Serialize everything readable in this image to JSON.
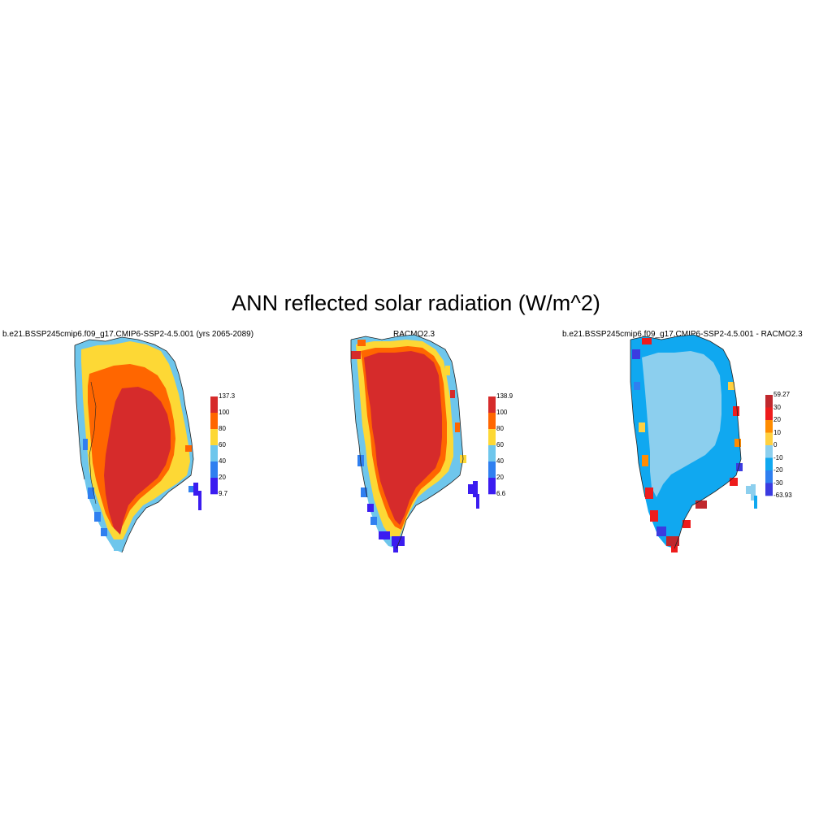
{
  "figure": {
    "title": "ANN reflected solar radiation (W/m^2)"
  },
  "panels": [
    {
      "title": "b.e21.BSSP245cmip6.f09_g17.CMIP6-SSP2-4.5.001 (yrs 2065-2089)",
      "colorbar": {
        "labels": [
          "137.3",
          "100",
          "80",
          "60",
          "40",
          "20",
          "9.7"
        ],
        "colors": [
          "#d62b2b",
          "#ff6600",
          "#fdd835",
          "#6ec6ec",
          "#2f7ff0",
          "#3b1cf0"
        ]
      }
    },
    {
      "title": "RACMO2.3",
      "colorbar": {
        "labels": [
          "138.9",
          "100",
          "80",
          "60",
          "40",
          "20",
          "6.6"
        ],
        "colors": [
          "#d62b2b",
          "#ff6600",
          "#fdd835",
          "#6ec6ec",
          "#2f7ff0",
          "#3b1cf0"
        ]
      }
    },
    {
      "title": "b.e21.BSSP245cmip6.f09_g17.CMIP6-SSP2-4.5.001 - RACMO2.3",
      "colorbar": {
        "labels": [
          "59.27",
          "30",
          "20",
          "10",
          "0",
          "-10",
          "-20",
          "-30",
          "-63.93"
        ],
        "colors": [
          "#c0282d",
          "#ee1c1c",
          "#ff8c00",
          "#ffd040",
          "#8ccfee",
          "#10a8f0",
          "#2f7ff0",
          "#3b3be0"
        ]
      }
    }
  ]
}
